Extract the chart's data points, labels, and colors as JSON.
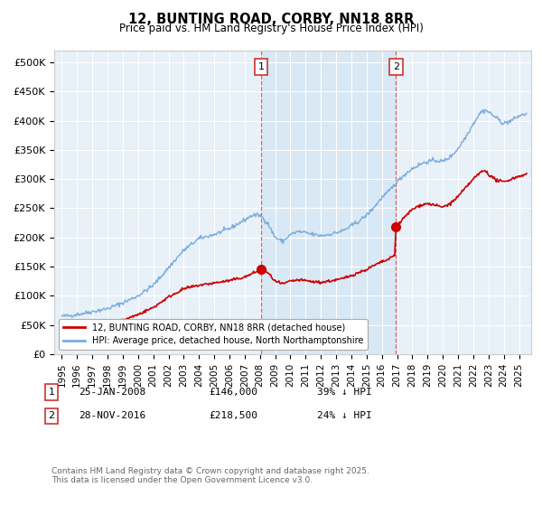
{
  "title": "12, BUNTING ROAD, CORBY, NN18 8RR",
  "subtitle": "Price paid vs. HM Land Registry's House Price Index (HPI)",
  "ylabel_ticks": [
    "£0",
    "£50K",
    "£100K",
    "£150K",
    "£200K",
    "£250K",
    "£300K",
    "£350K",
    "£400K",
    "£450K",
    "£500K"
  ],
  "ytick_values": [
    0,
    50000,
    100000,
    150000,
    200000,
    250000,
    300000,
    350000,
    400000,
    450000,
    500000
  ],
  "ylim": [
    0,
    520000
  ],
  "xlim_start": 1994.5,
  "xlim_end": 2025.8,
  "sale1_date": 2008.07,
  "sale1_price": 146000,
  "sale2_date": 2016.92,
  "sale2_price": 218500,
  "vline1_x": 2008.07,
  "vline2_x": 2016.92,
  "red_line_color": "#cc0000",
  "blue_line_color": "#7aacdc",
  "shade_color": "#d8e8f5",
  "vline_color": "#e06060",
  "background_color": "#e8f0f8",
  "legend_label_red": "12, BUNTING ROAD, CORBY, NN18 8RR (detached house)",
  "legend_label_blue": "HPI: Average price, detached house, North Northamptonshire",
  "footer": "Contains HM Land Registry data © Crown copyright and database right 2025.\nThis data is licensed under the Open Government Licence v3.0.",
  "xtick_years": [
    1995,
    1996,
    1997,
    1998,
    1999,
    2000,
    2001,
    2002,
    2003,
    2004,
    2005,
    2006,
    2007,
    2008,
    2009,
    2010,
    2011,
    2012,
    2013,
    2014,
    2015,
    2016,
    2017,
    2018,
    2019,
    2020,
    2021,
    2022,
    2023,
    2024,
    2025
  ]
}
